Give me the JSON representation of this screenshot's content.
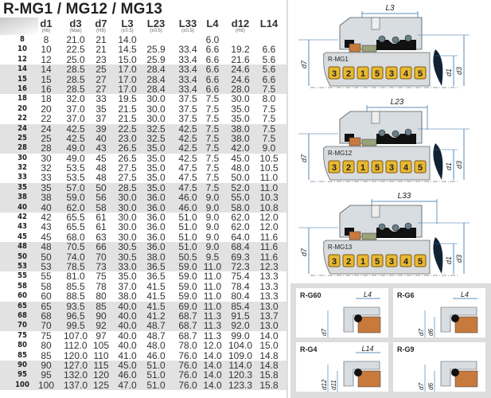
{
  "title": "R-MG1 / MG12 / MG13",
  "table": {
    "columns": [
      {
        "main": "d1",
        "sub": "(h6)"
      },
      {
        "main": "d3",
        "sub": "(Max)"
      },
      {
        "main": "d7",
        "sub": "(H8)"
      },
      {
        "main": "L3",
        "sub": "(±0.5)"
      },
      {
        "main": "L23",
        "sub": "(±0.5)"
      },
      {
        "main": "L33",
        "sub": "(±0.5)"
      },
      {
        "main": "L4",
        "sub": ""
      },
      {
        "main": "d12",
        "sub": "(H8)"
      },
      {
        "main": "L14",
        "sub": ""
      }
    ],
    "rows": [
      {
        "size": "8",
        "shaded": false,
        "values": [
          "8",
          "21.0",
          "21",
          "14.0",
          "",
          "",
          "6.0",
          "",
          ""
        ]
      },
      {
        "size": "10",
        "shaded": false,
        "values": [
          "10",
          "22.5",
          "21",
          "14.5",
          "25.9",
          "33.4",
          "6.6",
          "19.2",
          "6.6"
        ]
      },
      {
        "size": "12",
        "shaded": false,
        "values": [
          "12",
          "25.0",
          "23",
          "15.0",
          "25.9",
          "33.4",
          "6.6",
          "21.6",
          "5.6"
        ]
      },
      {
        "size": "14",
        "shaded": true,
        "values": [
          "14",
          "28.5",
          "25",
          "17.0",
          "28.4",
          "33.4",
          "6.6",
          "24.6",
          "5.6"
        ]
      },
      {
        "size": "15",
        "shaded": true,
        "values": [
          "15",
          "28.5",
          "27",
          "17.0",
          "28.4",
          "33.4",
          "6.6",
          "24.6",
          "6.6"
        ]
      },
      {
        "size": "16",
        "shaded": true,
        "values": [
          "16",
          "28.5",
          "27",
          "17.0",
          "28.4",
          "33.4",
          "6.6",
          "28.0",
          "7.5"
        ]
      },
      {
        "size": "18",
        "shaded": false,
        "values": [
          "18",
          "32.0",
          "33",
          "19.5",
          "30.0",
          "37.5",
          "7.5",
          "30.0",
          "8.0"
        ]
      },
      {
        "size": "20",
        "shaded": false,
        "values": [
          "20",
          "37.0",
          "35",
          "21.5",
          "30.0",
          "37.5",
          "7.5",
          "35.0",
          "7.5"
        ]
      },
      {
        "size": "22",
        "shaded": false,
        "values": [
          "22",
          "37.0",
          "37",
          "21.5",
          "30.0",
          "37.5",
          "7.5",
          "35.0",
          "7.5"
        ]
      },
      {
        "size": "24",
        "shaded": true,
        "values": [
          "24",
          "42.5",
          "39",
          "22.5",
          "32.5",
          "42.5",
          "7.5",
          "38.0",
          "7.5"
        ]
      },
      {
        "size": "25",
        "shaded": true,
        "values": [
          "25",
          "42.5",
          "40",
          "23.0",
          "32.5",
          "42.5",
          "7.5",
          "38.0",
          "7.5"
        ]
      },
      {
        "size": "28",
        "shaded": true,
        "values": [
          "28",
          "49.0",
          "43",
          "26.5",
          "35.0",
          "42.5",
          "7.5",
          "42.0",
          "9.0"
        ]
      },
      {
        "size": "30",
        "shaded": false,
        "values": [
          "30",
          "49.0",
          "45",
          "26.5",
          "35.0",
          "42.5",
          "7.5",
          "45.0",
          "10.5"
        ]
      },
      {
        "size": "32",
        "shaded": false,
        "values": [
          "32",
          "53.5",
          "48",
          "27.5",
          "35.0",
          "47.5",
          "7.5",
          "48.0",
          "10.5"
        ]
      },
      {
        "size": "33",
        "shaded": false,
        "values": [
          "33",
          "53.5",
          "48",
          "27.5",
          "35.0",
          "47.5",
          "7.5",
          "50.0",
          "11.0"
        ]
      },
      {
        "size": "35",
        "shaded": true,
        "values": [
          "35",
          "57.0",
          "50",
          "28.5",
          "35.0",
          "47.5",
          "7.5",
          "52.0",
          "11.0"
        ]
      },
      {
        "size": "38",
        "shaded": true,
        "values": [
          "38",
          "59.0",
          "56",
          "30.0",
          "36.0",
          "46.0",
          "9.0",
          "55.0",
          "10.3"
        ]
      },
      {
        "size": "40",
        "shaded": true,
        "values": [
          "40",
          "62.0",
          "58",
          "30.0",
          "36.0",
          "46.0",
          "9.0",
          "58.0",
          "10.8"
        ]
      },
      {
        "size": "42",
        "shaded": false,
        "values": [
          "42",
          "65.5",
          "61",
          "30.0",
          "36.0",
          "51.0",
          "9.0",
          "62.0",
          "12.0"
        ]
      },
      {
        "size": "43",
        "shaded": false,
        "values": [
          "43",
          "65.5",
          "61",
          "30.0",
          "36.0",
          "51.0",
          "9.0",
          "62.0",
          "12.0"
        ]
      },
      {
        "size": "45",
        "shaded": false,
        "values": [
          "45",
          "68.0",
          "63",
          "30.0",
          "36.0",
          "51.0",
          "9.0",
          "64.0",
          "11.6"
        ]
      },
      {
        "size": "48",
        "shaded": true,
        "values": [
          "48",
          "70.5",
          "66",
          "30.5",
          "36.0",
          "51.0",
          "9.0",
          "68.4",
          "11.6"
        ]
      },
      {
        "size": "50",
        "shaded": true,
        "values": [
          "50",
          "74.0",
          "70",
          "30.5",
          "38.0",
          "50.5",
          "9.5",
          "69.3",
          "11.6"
        ]
      },
      {
        "size": "53",
        "shaded": true,
        "values": [
          "53",
          "78.5",
          "73",
          "33.0",
          "36.5",
          "59.0",
          "11.0",
          "72.3",
          "12.3"
        ]
      },
      {
        "size": "55",
        "shaded": false,
        "values": [
          "55",
          "81.0",
          "75",
          "35.0",
          "36.5",
          "59.0",
          "11.0",
          "75.4",
          "13.3"
        ]
      },
      {
        "size": "58",
        "shaded": false,
        "values": [
          "58",
          "85.5",
          "78",
          "37.0",
          "41.5",
          "59.0",
          "11.0",
          "78.4",
          "13.3"
        ]
      },
      {
        "size": "60",
        "shaded": false,
        "values": [
          "60",
          "88.5",
          "80",
          "38.0",
          "41.5",
          "59.0",
          "11.0",
          "80.4",
          "13.3"
        ]
      },
      {
        "size": "65",
        "shaded": true,
        "values": [
          "65",
          "93.5",
          "85",
          "40.0",
          "41.5",
          "69.0",
          "11.0",
          "85.4",
          "13.0"
        ]
      },
      {
        "size": "68",
        "shaded": true,
        "values": [
          "68",
          "96.5",
          "90",
          "40.0",
          "41.2",
          "68.7",
          "11.3",
          "91.5",
          "13.7"
        ]
      },
      {
        "size": "70",
        "shaded": true,
        "values": [
          "70",
          "99.5",
          "92",
          "40.0",
          "48.7",
          "68.7",
          "11.3",
          "92.0",
          "13.0"
        ]
      },
      {
        "size": "75",
        "shaded": false,
        "values": [
          "75",
          "107.0",
          "97",
          "40.0",
          "48.7",
          "68.7",
          "11.3",
          "99.0",
          "14.0"
        ]
      },
      {
        "size": "80",
        "shaded": false,
        "values": [
          "80",
          "112.0",
          "105",
          "40.0",
          "48.0",
          "78.0",
          "12.0",
          "104.0",
          "15.0"
        ]
      },
      {
        "size": "85",
        "shaded": false,
        "values": [
          "85",
          "120.0",
          "110",
          "41.0",
          "46.0",
          "76.0",
          "14.0",
          "109.0",
          "14.8"
        ]
      },
      {
        "size": "90",
        "shaded": true,
        "values": [
          "90",
          "127.0",
          "115",
          "45.0",
          "51.0",
          "76.0",
          "14.0",
          "114.0",
          "14.8"
        ]
      },
      {
        "size": "95",
        "shaded": true,
        "values": [
          "95",
          "132.0",
          "120",
          "46.0",
          "51.0",
          "76.0",
          "14.0",
          "120.3",
          "15.8"
        ]
      },
      {
        "size": "100",
        "shaded": true,
        "values": [
          "100",
          "137.0",
          "125",
          "47.0",
          "51.0",
          "76.0",
          "14.0",
          "123.3",
          "15.8"
        ]
      }
    ]
  },
  "diagrams": [
    {
      "name": "R-MG1",
      "length_label": "L3",
      "labels": {
        "d7": "d7",
        "d1": "d1",
        "d3": "d3"
      },
      "parts": [
        "3",
        "2",
        "1",
        "5",
        "3",
        "4",
        "5"
      ]
    },
    {
      "name": "R-MG12",
      "length_label": "L23",
      "labels": {
        "d7": "d7",
        "d1": "d1",
        "d3": "d3"
      },
      "parts": [
        "3",
        "2",
        "1",
        "5",
        "3",
        "4",
        "5"
      ]
    },
    {
      "name": "R-MG13",
      "length_label": "L33",
      "labels": {
        "d7": "d7",
        "d1": "d1",
        "d3": "d3"
      },
      "parts": [
        "3",
        "2",
        "1",
        "5",
        "3",
        "4",
        "5"
      ]
    }
  ],
  "seats": [
    {
      "name": "R-G60",
      "length_label": "L4",
      "dims": [
        "d7"
      ]
    },
    {
      "name": "R-G6",
      "length_label": "L4",
      "dims": [
        "d7",
        "d6"
      ]
    },
    {
      "name": "R-G4",
      "length_label": "L14",
      "dims": [
        "d12",
        "d11"
      ]
    },
    {
      "name": "R-G9",
      "length_label": "",
      "dims": [
        "d7",
        "d6"
      ]
    }
  ],
  "colors": {
    "shaded_row": "#e2e2e2",
    "dimension_line": "#2a6ea8",
    "part_badge": "#e8b830",
    "seat_copper": "#c87a3c",
    "elastomer": "#111111",
    "housing": "#d8dde2"
  }
}
